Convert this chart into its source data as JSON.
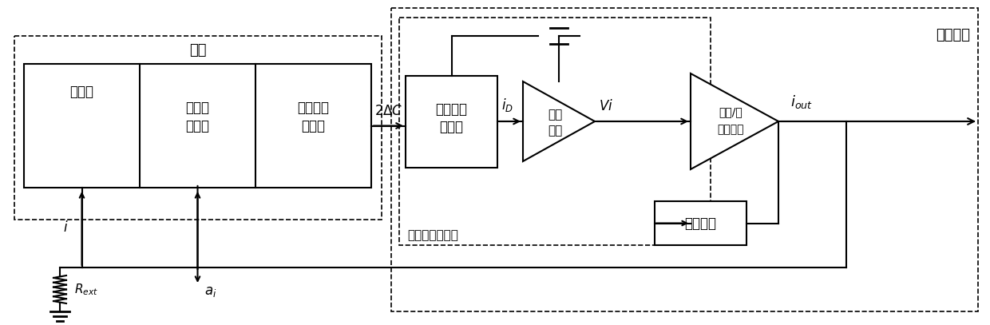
{
  "bg_color": "#ffffff",
  "line_color": "#000000",
  "box_fill": "#ffffff",
  "dashed_color": "#000000",
  "biaotou_label": "表头",
  "lijuqi_label": [
    "力矩器",
    ""
  ],
  "baizujian_label": [
    "摆组件",
    "动力学"
  ],
  "chadiancirong_label": [
    "差动电容",
    "传感器"
  ],
  "chadianjiance_label": [
    "差动电容",
    "检测器"
  ],
  "jifenwangluo_label": [
    "积分",
    "网络"
  ],
  "kuayubu_label": [
    "跨导/补",
    "偿放大器"
  ],
  "fankuiwangluo_label": [
    "反馈网络"
  ],
  "dianyazhuan_label": "电容电压转化器",
  "fufu_label": "伺服电路",
  "arrow_2dc": "2ΔC",
  "arrow_id": "i_D",
  "arrow_vi": "Vi",
  "arrow_iout": "i_{out}",
  "arrow_i": "i",
  "arrow_ai": "a_i",
  "arrow_Rext": "R_{ext}"
}
